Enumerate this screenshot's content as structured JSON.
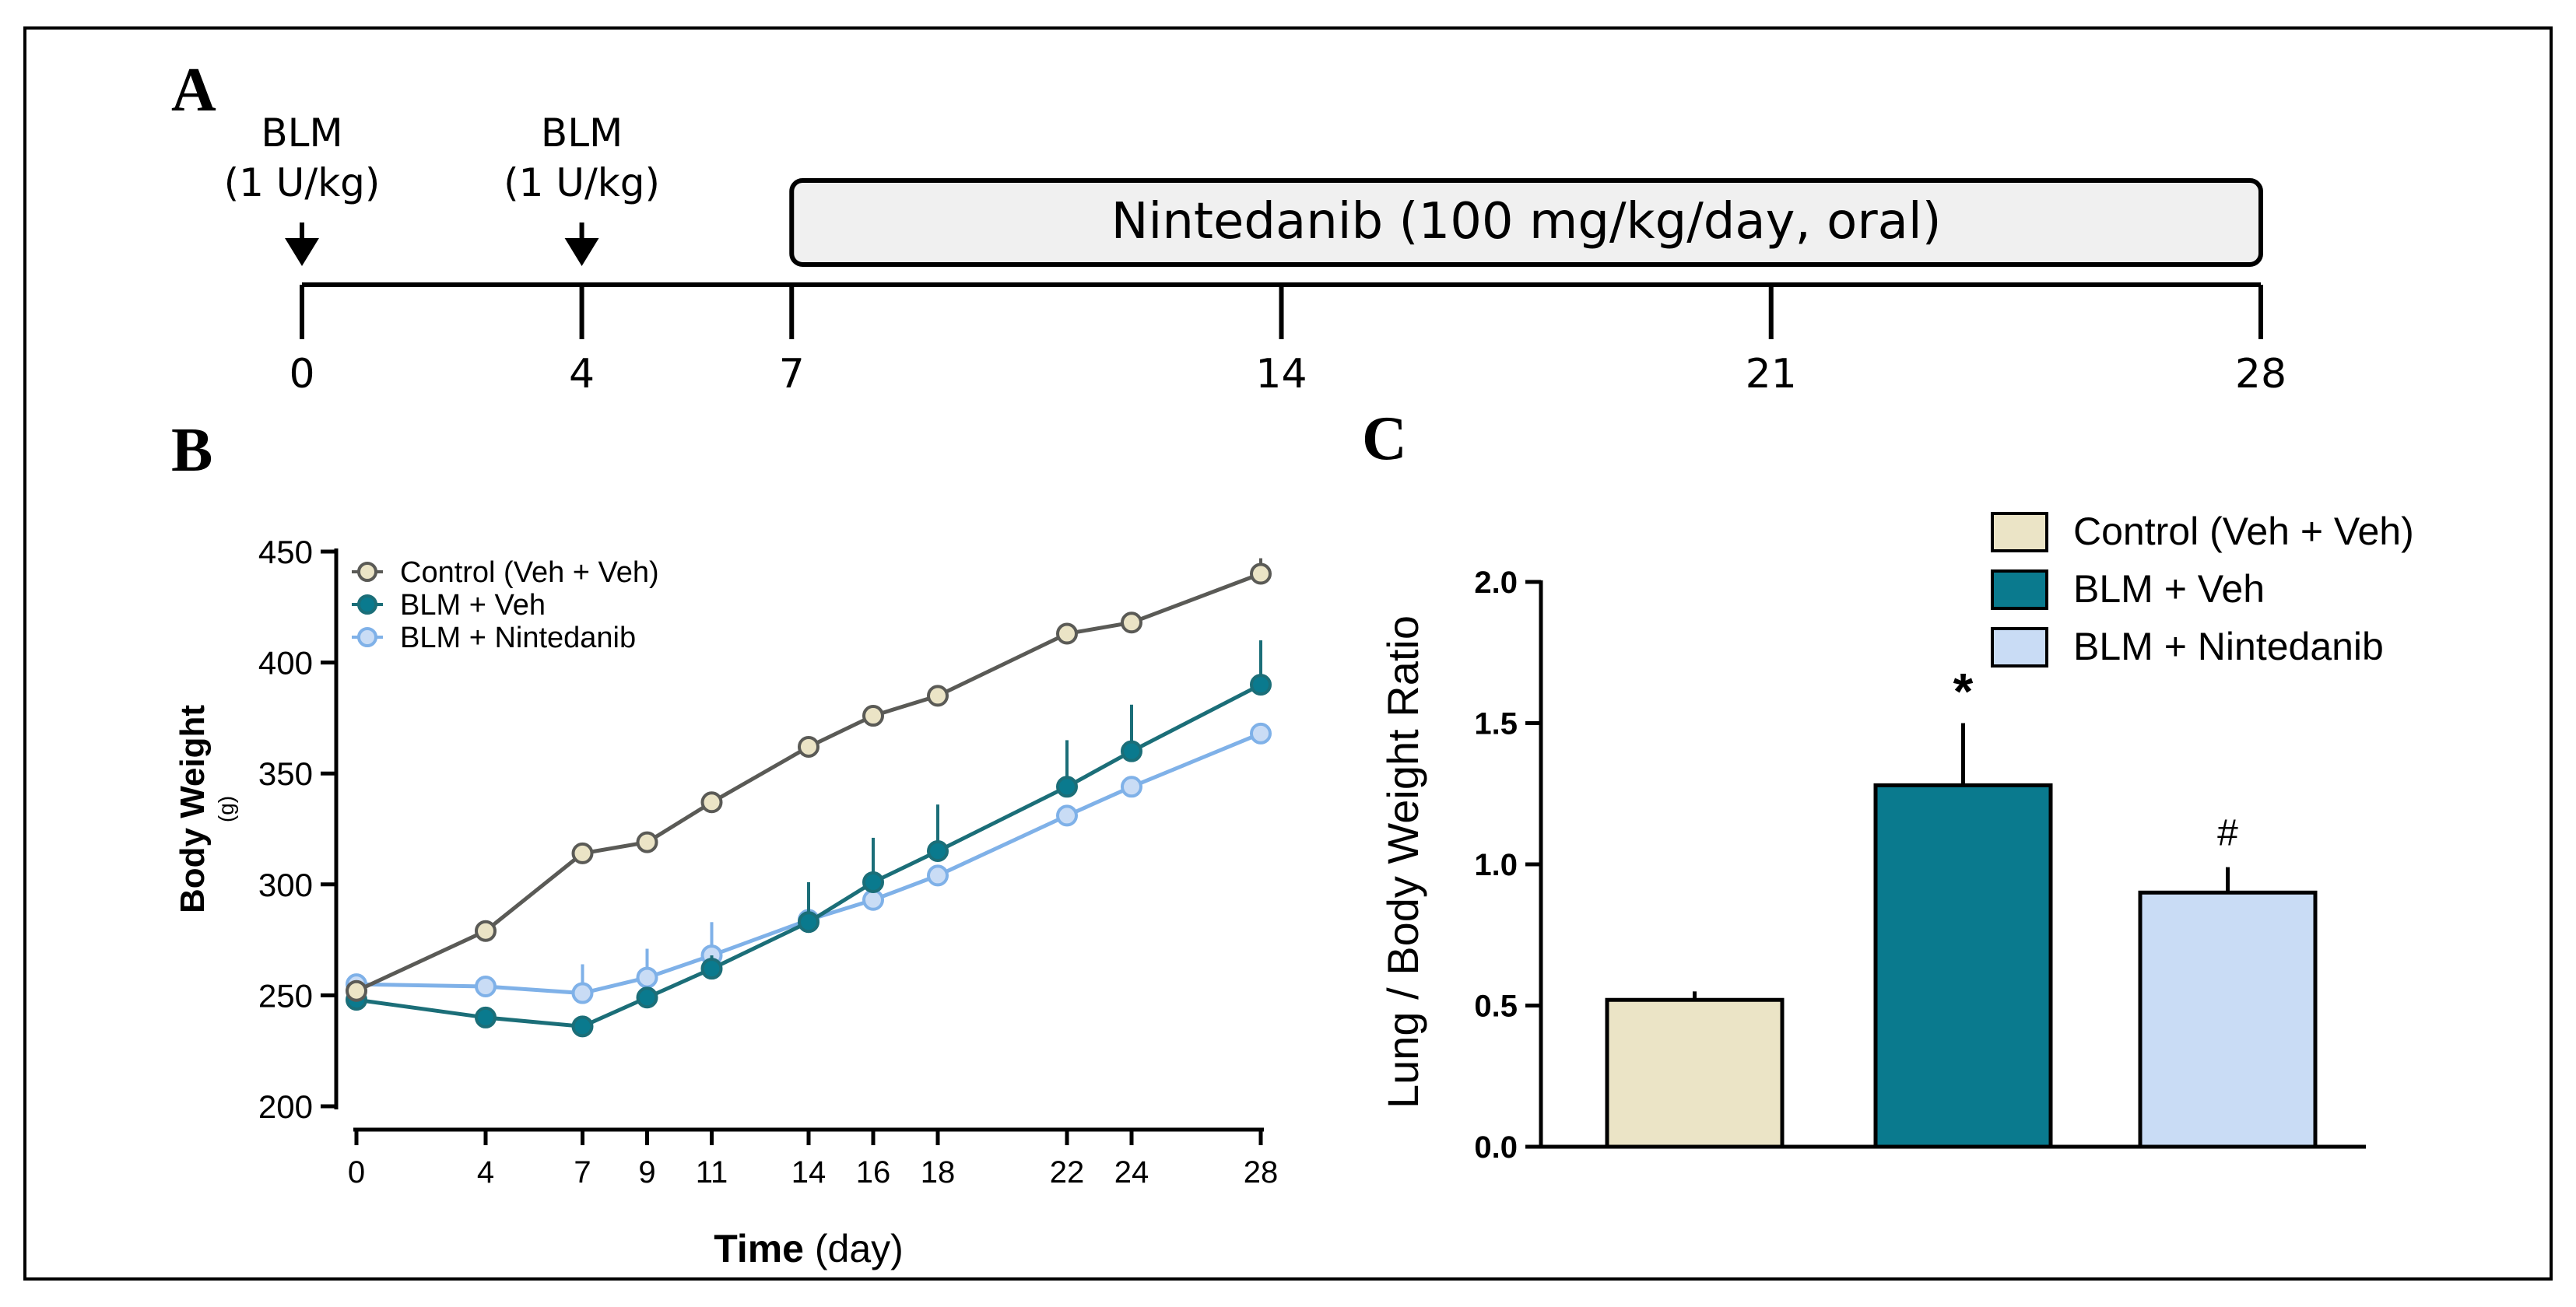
{
  "panel_labels": {
    "a": "A",
    "b": "B",
    "c": "C"
  },
  "colors": {
    "control": "#ebe4c6",
    "control_line": "#5a5a56",
    "blm_veh": "#0a7a8e",
    "blm_veh_line": "#1b6e78",
    "blm_nin": "#c9dcf5",
    "blm_nin_line": "#7fb1e8",
    "nin_box_fill": "#f0f0f0"
  },
  "timeline": {
    "doses": [
      {
        "name": "BLM",
        "dose": "(1 U/kg)",
        "day": 0
      },
      {
        "name": "BLM",
        "dose": "(1 U/kg)",
        "day": 4
      }
    ],
    "treatment": {
      "label": "Nintedanib (100 mg/kg/day, oral)",
      "start_day": 7,
      "end_day": 28
    },
    "ticks": [
      0,
      4,
      7,
      14,
      21,
      28
    ]
  },
  "chart_data": [
    {
      "type": "line",
      "title": "",
      "xlabel_bold": "Time",
      "xlabel_rest": " (day)",
      "ylabel": "Body Weight",
      "ylabel_unit": "(g)",
      "x": [
        0,
        4,
        7,
        9,
        11,
        14,
        16,
        18,
        22,
        24,
        28
      ],
      "xlim": [
        0,
        28
      ],
      "ylim": [
        200,
        450
      ],
      "yticks": [
        200,
        250,
        300,
        350,
        400,
        450
      ],
      "grid": false,
      "legend_position": "top-left",
      "series": [
        {
          "name": "Control (Veh + Veh)",
          "values": [
            252,
            279,
            314,
            319,
            337,
            362,
            376,
            385,
            413,
            418,
            440
          ],
          "errors": [
            3,
            2,
            3,
            2,
            2,
            2,
            3,
            2,
            4,
            2,
            7
          ]
        },
        {
          "name": "BLM + Veh",
          "values": [
            248,
            240,
            236,
            249,
            262,
            283,
            301,
            315,
            344,
            360,
            390
          ],
          "errors": [
            2,
            2,
            2,
            4,
            6,
            18,
            20,
            21,
            21,
            21,
            20
          ]
        },
        {
          "name": "BLM + Nintedanib",
          "values": [
            255,
            254,
            251,
            258,
            268,
            284,
            293,
            304,
            331,
            344,
            368
          ],
          "errors": [
            2,
            3,
            13,
            13,
            15,
            2,
            2,
            2,
            2,
            2,
            2
          ]
        }
      ]
    },
    {
      "type": "bar",
      "title": "",
      "xlabel": "",
      "ylabel": "Lung / Body Weight Ratio",
      "categories": [
        "Control (Veh + Veh)",
        "BLM + Veh",
        "BLM + Nintedanib"
      ],
      "values": [
        0.52,
        1.28,
        0.9
      ],
      "errors": [
        0.03,
        0.22,
        0.09
      ],
      "annotations": [
        "",
        "*",
        "#"
      ],
      "ylim": [
        0,
        2.0
      ],
      "yticks": [
        "0.0",
        "0.5",
        "1.0",
        "1.5",
        "2.0"
      ],
      "grid": false,
      "legend_position": "top-right"
    }
  ]
}
